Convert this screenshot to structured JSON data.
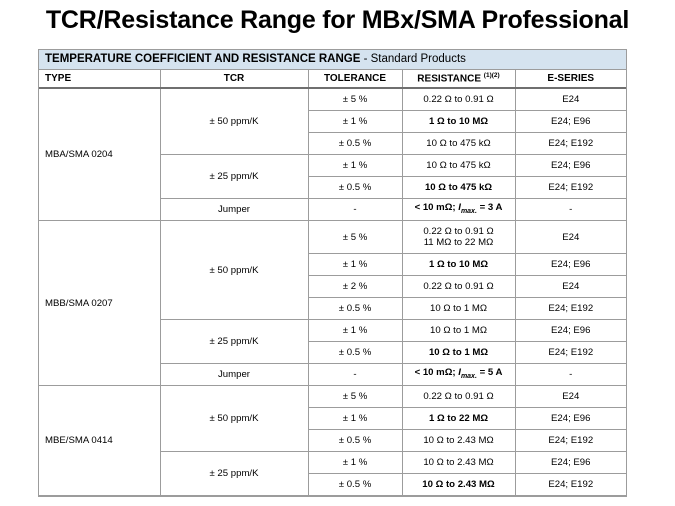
{
  "slide": {
    "title": "TCR/Resistance Range for MBx/SMA Professional"
  },
  "table": {
    "caption_bold": "TEMPERATURE COEFFICIENT AND RESISTANCE RANGE",
    "caption_rest": " - Standard Products",
    "headers": {
      "type": "TYPE",
      "tcr": "TCR",
      "tolerance": "TOLERANCE",
      "resistance": "RESISTANCE",
      "resistance_note": "(1)(2)",
      "eseries": "E-SERIES"
    },
    "groups": [
      {
        "type": "MBA/SMA 0204",
        "tcr_blocks": [
          {
            "tcr": "± 50 ppm/K",
            "rows": [
              {
                "tol": "± 5 %",
                "res": "0.22 Ω to 0.91 Ω",
                "res_bold": false,
                "es": "E24"
              },
              {
                "tol": "± 1 %",
                "res": "1 Ω to 10 MΩ",
                "res_bold": true,
                "es": "E24; E96"
              },
              {
                "tol": "± 0.5 %",
                "res": "10 Ω to 475 kΩ",
                "res_bold": false,
                "es": "E24; E192"
              }
            ]
          },
          {
            "tcr": "± 25 ppm/K",
            "rows": [
              {
                "tol": "± 1 %",
                "res": "10 Ω to 475 kΩ",
                "res_bold": false,
                "es": "E24; E96"
              },
              {
                "tol": "± 0.5 %",
                "res": "10 Ω to 475 kΩ",
                "res_bold": true,
                "es": "E24; E192"
              }
            ]
          }
        ],
        "jumper": {
          "label": "Jumper",
          "tcr": "-",
          "res_a": "< 10 mΩ; ",
          "res_i": "I",
          "res_sub": "max.",
          "res_b": " = 3 A",
          "es": "-"
        }
      },
      {
        "type": "MBB/SMA 0207",
        "tcr_blocks": [
          {
            "tcr": "± 50 ppm/K",
            "rows": [
              {
                "tol": "± 5 %",
                "res": "0.22 Ω to 0.91 Ω",
                "res2": "11 MΩ to 22 MΩ",
                "res_bold": false,
                "es": "E24"
              },
              {
                "tol": "± 1 %",
                "res": "1 Ω to 10 MΩ",
                "res_bold": true,
                "es": "E24; E96"
              },
              {
                "tol": "± 2 %",
                "res": "0.22 Ω to 0.91 Ω",
                "res_bold": false,
                "es": "E24"
              },
              {
                "tol": "± 0.5 %",
                "res": "10 Ω to 1 MΩ",
                "res_bold": false,
                "es": "E24; E192"
              }
            ]
          },
          {
            "tcr": "± 25 ppm/K",
            "rows": [
              {
                "tol": "± 1 %",
                "res": "10 Ω to 1 MΩ",
                "res_bold": false,
                "es": "E24; E96"
              },
              {
                "tol": "± 0.5 %",
                "res": "10 Ω to 1 MΩ",
                "res_bold": true,
                "es": "E24; E192"
              }
            ]
          }
        ],
        "jumper": {
          "label": "Jumper",
          "tcr": "-",
          "res_a": "< 10 mΩ; ",
          "res_i": "I",
          "res_sub": "max.",
          "res_b": " = 5 A",
          "es": "-"
        }
      },
      {
        "type": "MBE/SMA 0414",
        "tcr_blocks": [
          {
            "tcr": "± 50 ppm/K",
            "rows": [
              {
                "tol": "± 5 %",
                "res": "0.22 Ω to 0.91 Ω",
                "res_bold": false,
                "es": "E24"
              },
              {
                "tol": "± 1 %",
                "res": "1 Ω to 22 MΩ",
                "res_bold": true,
                "es": "E24; E96"
              },
              {
                "tol": "± 0.5 %",
                "res": "10 Ω to 2.43 MΩ",
                "res_bold": false,
                "es": "E24; E192"
              }
            ]
          },
          {
            "tcr": "± 25 ppm/K",
            "rows": [
              {
                "tol": "± 1 %",
                "res": "10 Ω to 2.43 MΩ",
                "res_bold": false,
                "es": "E24; E96"
              },
              {
                "tol": "± 0.5 %",
                "res": "10 Ω to 2.43 MΩ",
                "res_bold": true,
                "es": "E24; E192"
              }
            ]
          }
        ]
      }
    ]
  }
}
